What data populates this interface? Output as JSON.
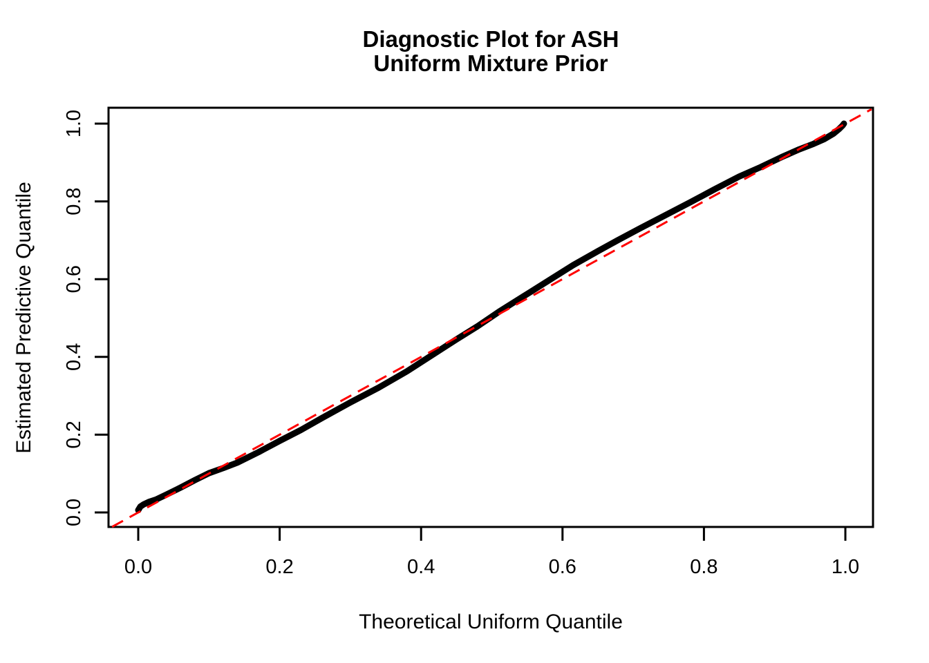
{
  "figure": {
    "background": "#ffffff",
    "foreground": "#000000"
  },
  "chart_data": {
    "type": "scatter",
    "subtype": "qq-plot",
    "title": "Diagnostic Plot for ASH\nUniform Mixture Prior",
    "title_lines": [
      "Diagnostic Plot for ASH",
      "Uniform Mixture Prior"
    ],
    "xlabel": "Theoretical Uniform Quantile",
    "ylabel": "Estimated Predictive Quantile",
    "xlim": [
      0,
      1
    ],
    "ylim": [
      0,
      1
    ],
    "grid": false,
    "legend_position": "none",
    "x_ticks": {
      "values": [
        0.0,
        0.2,
        0.4,
        0.6,
        0.8,
        1.0
      ],
      "labels": [
        "0.0",
        "0.2",
        "0.4",
        "0.6",
        "0.8",
        "1.0"
      ]
    },
    "y_ticks": {
      "values": [
        0.0,
        0.2,
        0.4,
        0.6,
        0.8,
        1.0
      ],
      "labels": [
        "0.0",
        "0.2",
        "0.4",
        "0.6",
        "0.8",
        "1.0"
      ]
    },
    "series": [
      {
        "name": "estimated_predictive_quantiles",
        "type": "points",
        "marker": "filled-circle",
        "color": "#000000",
        "points": [
          [
            0.0,
            0.006
          ],
          [
            0.003,
            0.015
          ],
          [
            0.008,
            0.021
          ],
          [
            0.015,
            0.027
          ],
          [
            0.025,
            0.033
          ],
          [
            0.04,
            0.046
          ],
          [
            0.06,
            0.064
          ],
          [
            0.08,
            0.083
          ],
          [
            0.1,
            0.101
          ],
          [
            0.12,
            0.114
          ],
          [
            0.14,
            0.128
          ],
          [
            0.17,
            0.155
          ],
          [
            0.2,
            0.184
          ],
          [
            0.23,
            0.212
          ],
          [
            0.26,
            0.243
          ],
          [
            0.3,
            0.283
          ],
          [
            0.34,
            0.321
          ],
          [
            0.38,
            0.363
          ],
          [
            0.42,
            0.41
          ],
          [
            0.45,
            0.445
          ],
          [
            0.48,
            0.479
          ],
          [
            0.51,
            0.516
          ],
          [
            0.545,
            0.556
          ],
          [
            0.58,
            0.596
          ],
          [
            0.615,
            0.636
          ],
          [
            0.65,
            0.672
          ],
          [
            0.68,
            0.702
          ],
          [
            0.71,
            0.731
          ],
          [
            0.745,
            0.764
          ],
          [
            0.78,
            0.797
          ],
          [
            0.815,
            0.831
          ],
          [
            0.85,
            0.864
          ],
          [
            0.88,
            0.888
          ],
          [
            0.91,
            0.914
          ],
          [
            0.935,
            0.934
          ],
          [
            0.955,
            0.948
          ],
          [
            0.97,
            0.96
          ],
          [
            0.983,
            0.974
          ],
          [
            0.991,
            0.986
          ],
          [
            0.996,
            0.995
          ],
          [
            0.998,
            1.0
          ]
        ]
      },
      {
        "name": "identity_reference",
        "type": "line",
        "style": "dashed",
        "color": "#FF0000",
        "slope": 1,
        "intercept": 0,
        "span": [
          [
            -0.037,
            -0.037
          ],
          [
            1.037,
            1.037
          ]
        ]
      }
    ]
  }
}
